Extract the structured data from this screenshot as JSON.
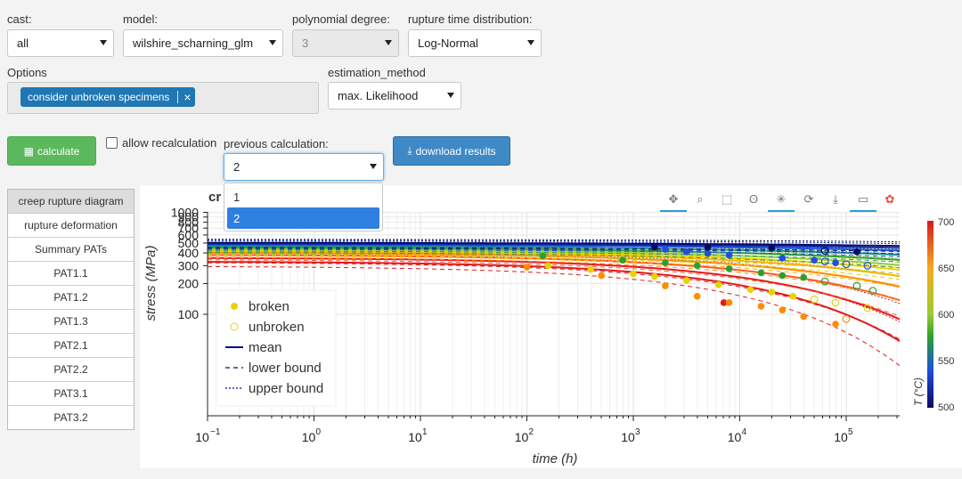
{
  "cast": {
    "label": "cast:",
    "value": "all"
  },
  "model": {
    "label": "model:",
    "value": "wilshire_scharning_glm"
  },
  "poly_degree": {
    "label": "polynomial degree:",
    "value": "3"
  },
  "rupture_dist": {
    "label": "rupture time distribution:",
    "value": "Log-Normal"
  },
  "options": {
    "label": "Options",
    "chip": "consider unbroken specimens",
    "chip_remove": "×"
  },
  "estimation": {
    "label": "estimation_method",
    "value": "max. Likelihood"
  },
  "calculate_btn": "calculate",
  "allow_recalc": "allow recalculation",
  "prev_calc": {
    "label": "previous calculation:",
    "value": "2",
    "options": [
      "1",
      "2"
    ]
  },
  "download_btn": "download results",
  "tabs": [
    "creep rupture diagram",
    "rupture deformation",
    "Summary PATs",
    "PAT1.1",
    "PAT1.2",
    "PAT1.3",
    "PAT2.1",
    "PAT2.2",
    "PAT3.1",
    "PAT3.2"
  ],
  "plot": {
    "title_fragment": "cr",
    "ylabel": "stress (MPa)",
    "xlabel": "time (h)",
    "y_ticks": [
      "1000",
      "900",
      "800",
      "700",
      "600",
      "500",
      "400",
      "300",
      "200",
      "100"
    ],
    "x_ticks": [
      "10",
      "10",
      "10",
      "10",
      "10",
      "10",
      "10"
    ],
    "x_exps": [
      "−1",
      "0",
      "1",
      "2",
      "3",
      "4",
      "5"
    ],
    "legend": [
      "broken",
      "unbroken",
      "mean",
      "lower bound",
      "upper bound"
    ],
    "colorbar_ticks": [
      "700",
      "650",
      "600",
      "550",
      "500"
    ],
    "colorbar_title": "T (°C)",
    "colors": {
      "hot": "#e31a1c",
      "orange": "#ff8c00",
      "yellow": "#e6d400",
      "green": "#2ca02c",
      "blue": "#1f4fe0",
      "navy": "#0a0a60"
    }
  }
}
